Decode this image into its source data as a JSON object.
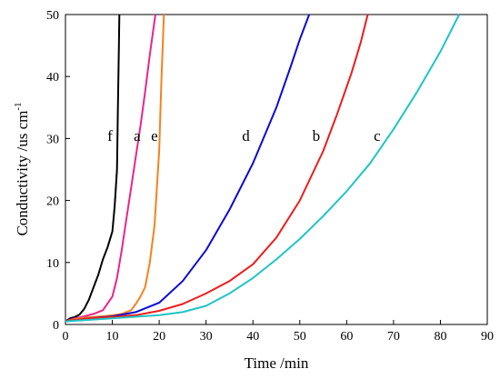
{
  "chart_data": {
    "type": "line",
    "xlabel": "Time /min",
    "ylabel": "Conductivity /us cm",
    "ylabel_superscript": "-1",
    "xlim": [
      0,
      90
    ],
    "ylim": [
      0,
      50
    ],
    "xticks": [
      0,
      10,
      20,
      30,
      40,
      50,
      60,
      70,
      80,
      90
    ],
    "yticks": [
      0,
      10,
      20,
      30,
      40,
      50
    ],
    "grid": false,
    "series": [
      {
        "name": "f",
        "color": "#000000",
        "label_at": [
          9.5,
          30.5
        ],
        "points": [
          [
            0,
            0.5
          ],
          [
            1,
            1.0
          ],
          [
            2,
            1.2
          ],
          [
            3,
            1.6
          ],
          [
            4,
            2.5
          ],
          [
            5,
            4.0
          ],
          [
            6,
            6.0
          ],
          [
            7,
            8.0
          ],
          [
            8,
            10.5
          ],
          [
            9,
            12.5
          ],
          [
            10,
            15.0
          ],
          [
            10.5,
            19.0
          ],
          [
            11,
            25.0
          ],
          [
            11.2,
            35.0
          ],
          [
            11.4,
            45.0
          ],
          [
            11.5,
            50.0
          ]
        ]
      },
      {
        "name": "a",
        "color": "#e8268a",
        "label_at": [
          15.3,
          30.5
        ],
        "points": [
          [
            0,
            0.5
          ],
          [
            2,
            1.0
          ],
          [
            4,
            1.3
          ],
          [
            6,
            1.7
          ],
          [
            8,
            2.3
          ],
          [
            10,
            4.5
          ],
          [
            11,
            7.5
          ],
          [
            12,
            12.0
          ],
          [
            13,
            17.0
          ],
          [
            14,
            22.0
          ],
          [
            15,
            27.0
          ],
          [
            16,
            32.0
          ],
          [
            17,
            37.5
          ],
          [
            18,
            43.5
          ],
          [
            19,
            49.0
          ],
          [
            19.2,
            50.0
          ]
        ]
      },
      {
        "name": "e",
        "color": "#f5821f",
        "label_at": [
          19.0,
          30.5
        ],
        "points": [
          [
            0,
            0.5
          ],
          [
            3,
            1.0
          ],
          [
            6,
            1.2
          ],
          [
            9,
            1.4
          ],
          [
            12,
            1.7
          ],
          [
            14,
            2.3
          ],
          [
            15,
            3.3
          ],
          [
            16,
            4.5
          ],
          [
            17,
            6.0
          ],
          [
            18,
            10.0
          ],
          [
            19,
            16.0
          ],
          [
            20,
            28.0
          ],
          [
            20.5,
            40.0
          ],
          [
            21,
            50.0
          ]
        ]
      },
      {
        "name": "d",
        "color": "#0a0ad4",
        "label_at": [
          38.5,
          30.5
        ],
        "points": [
          [
            0,
            0.5
          ],
          [
            5,
            1.0
          ],
          [
            10,
            1.3
          ],
          [
            15,
            2.0
          ],
          [
            20,
            3.5
          ],
          [
            25,
            7.0
          ],
          [
            30,
            12.0
          ],
          [
            35,
            18.5
          ],
          [
            40,
            26.0
          ],
          [
            45,
            35.0
          ],
          [
            48,
            41.5
          ],
          [
            50,
            46.0
          ],
          [
            52,
            50.0
          ]
        ]
      },
      {
        "name": "b",
        "color": "#ee1c1c",
        "label_at": [
          53.5,
          30.5
        ],
        "points": [
          [
            0,
            0.5
          ],
          [
            5,
            1.0
          ],
          [
            10,
            1.2
          ],
          [
            15,
            1.5
          ],
          [
            20,
            2.2
          ],
          [
            25,
            3.3
          ],
          [
            30,
            5.0
          ],
          [
            35,
            7.0
          ],
          [
            40,
            9.7
          ],
          [
            45,
            14.0
          ],
          [
            50,
            20.0
          ],
          [
            55,
            28.0
          ],
          [
            58,
            34.0
          ],
          [
            61,
            40.5
          ],
          [
            63,
            45.5
          ],
          [
            64.5,
            50.0
          ]
        ]
      },
      {
        "name": "c",
        "color": "#1fc4c4",
        "label_at": [
          66.5,
          30.5
        ],
        "points": [
          [
            0,
            0.5
          ],
          [
            10,
            1.0
          ],
          [
            20,
            1.5
          ],
          [
            25,
            2.0
          ],
          [
            30,
            3.0
          ],
          [
            35,
            5.0
          ],
          [
            40,
            7.5
          ],
          [
            45,
            10.5
          ],
          [
            50,
            13.8
          ],
          [
            55,
            17.5
          ],
          [
            60,
            21.5
          ],
          [
            65,
            26.0
          ],
          [
            70,
            31.5
          ],
          [
            75,
            37.5
          ],
          [
            80,
            44.0
          ],
          [
            84,
            50.0
          ]
        ]
      }
    ]
  }
}
